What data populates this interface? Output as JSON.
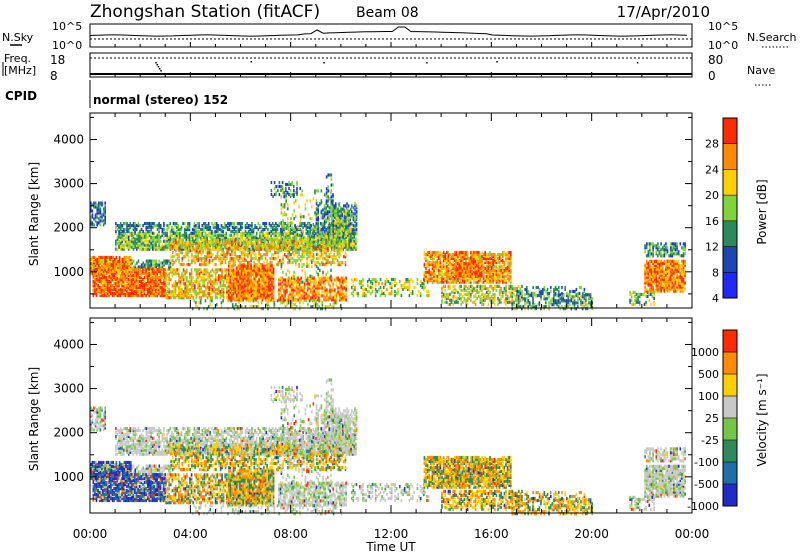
{
  "header": {
    "title": "Zhongshan Station (fitACF)",
    "beam": "Beam 08",
    "date": "17/Apr/2010"
  },
  "nsky_panel": {
    "left_label": "N.Sky",
    "right_label": "N.Search",
    "tick_labels": [
      "10^5",
      "10^0"
    ]
  },
  "freq_panel": {
    "left_label_1": "Freq.",
    "left_label_2": "[MHz]",
    "left_ticks": [
      "18",
      "8"
    ],
    "right_label": "Nave",
    "right_ticks": [
      "80",
      "0"
    ]
  },
  "cpid": {
    "label": "CPID",
    "text": "normal (stereo) 152"
  },
  "x_axis": {
    "label": "Time UT",
    "ticks": [
      "00:00",
      "04:00",
      "08:00",
      "12:00",
      "16:00",
      "20:00",
      "00:00"
    ]
  },
  "chart_data": {
    "type": "heatmap",
    "x_range_hours": [
      0,
      24
    ],
    "y_range_km": [
      180,
      4600
    ],
    "panels": [
      {
        "id": "power",
        "ylabel": "Slant Range [km]",
        "yticks": [
          "1000",
          "2000",
          "3000",
          "4000"
        ],
        "colorbar_label": "Power [dB]",
        "colorbar_ticks": [
          "28",
          "24",
          "20",
          "16",
          "12",
          "8",
          "4"
        ],
        "colors": [
          "#1e28ff",
          "#1c46b4",
          "#2a8a5a",
          "#7ed43a",
          "#ffd000",
          "#ff8a00",
          "#ff2a00"
        ],
        "scale": [
          0,
          32
        ]
      },
      {
        "id": "velocity",
        "ylabel": "Slant Range [km]",
        "yticks": [
          "1000",
          "2000",
          "3000",
          "4000"
        ],
        "colorbar_label": "Velocity [m s⁻¹]",
        "colorbar_ticks": [
          "1000",
          "500",
          "100",
          "25",
          "-25",
          "-100",
          "-500",
          "-1000"
        ],
        "colors": [
          "#1e2cc8",
          "#1e6ea8",
          "#2e8a5a",
          "#72c846",
          "#c8c8c8",
          "#ffd000",
          "#ff8c00",
          "#ff2a00"
        ]
      }
    ]
  }
}
